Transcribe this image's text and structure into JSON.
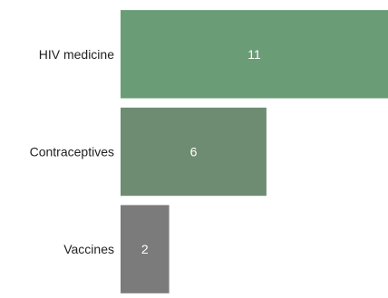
{
  "chart_data": {
    "type": "bar",
    "orientation": "horizontal",
    "categories": [
      "HIV medicine",
      "Contraceptives",
      "Vaccines"
    ],
    "values": [
      11,
      6,
      2
    ],
    "bar_colors": [
      "#6a9c76",
      "#6e8c72",
      "#7b7b7b"
    ],
    "value_label_color": "#ffffff",
    "xlim": [
      0,
      11
    ],
    "grid": false,
    "legend": "none",
    "title": "",
    "xlabel": "",
    "ylabel": ""
  }
}
